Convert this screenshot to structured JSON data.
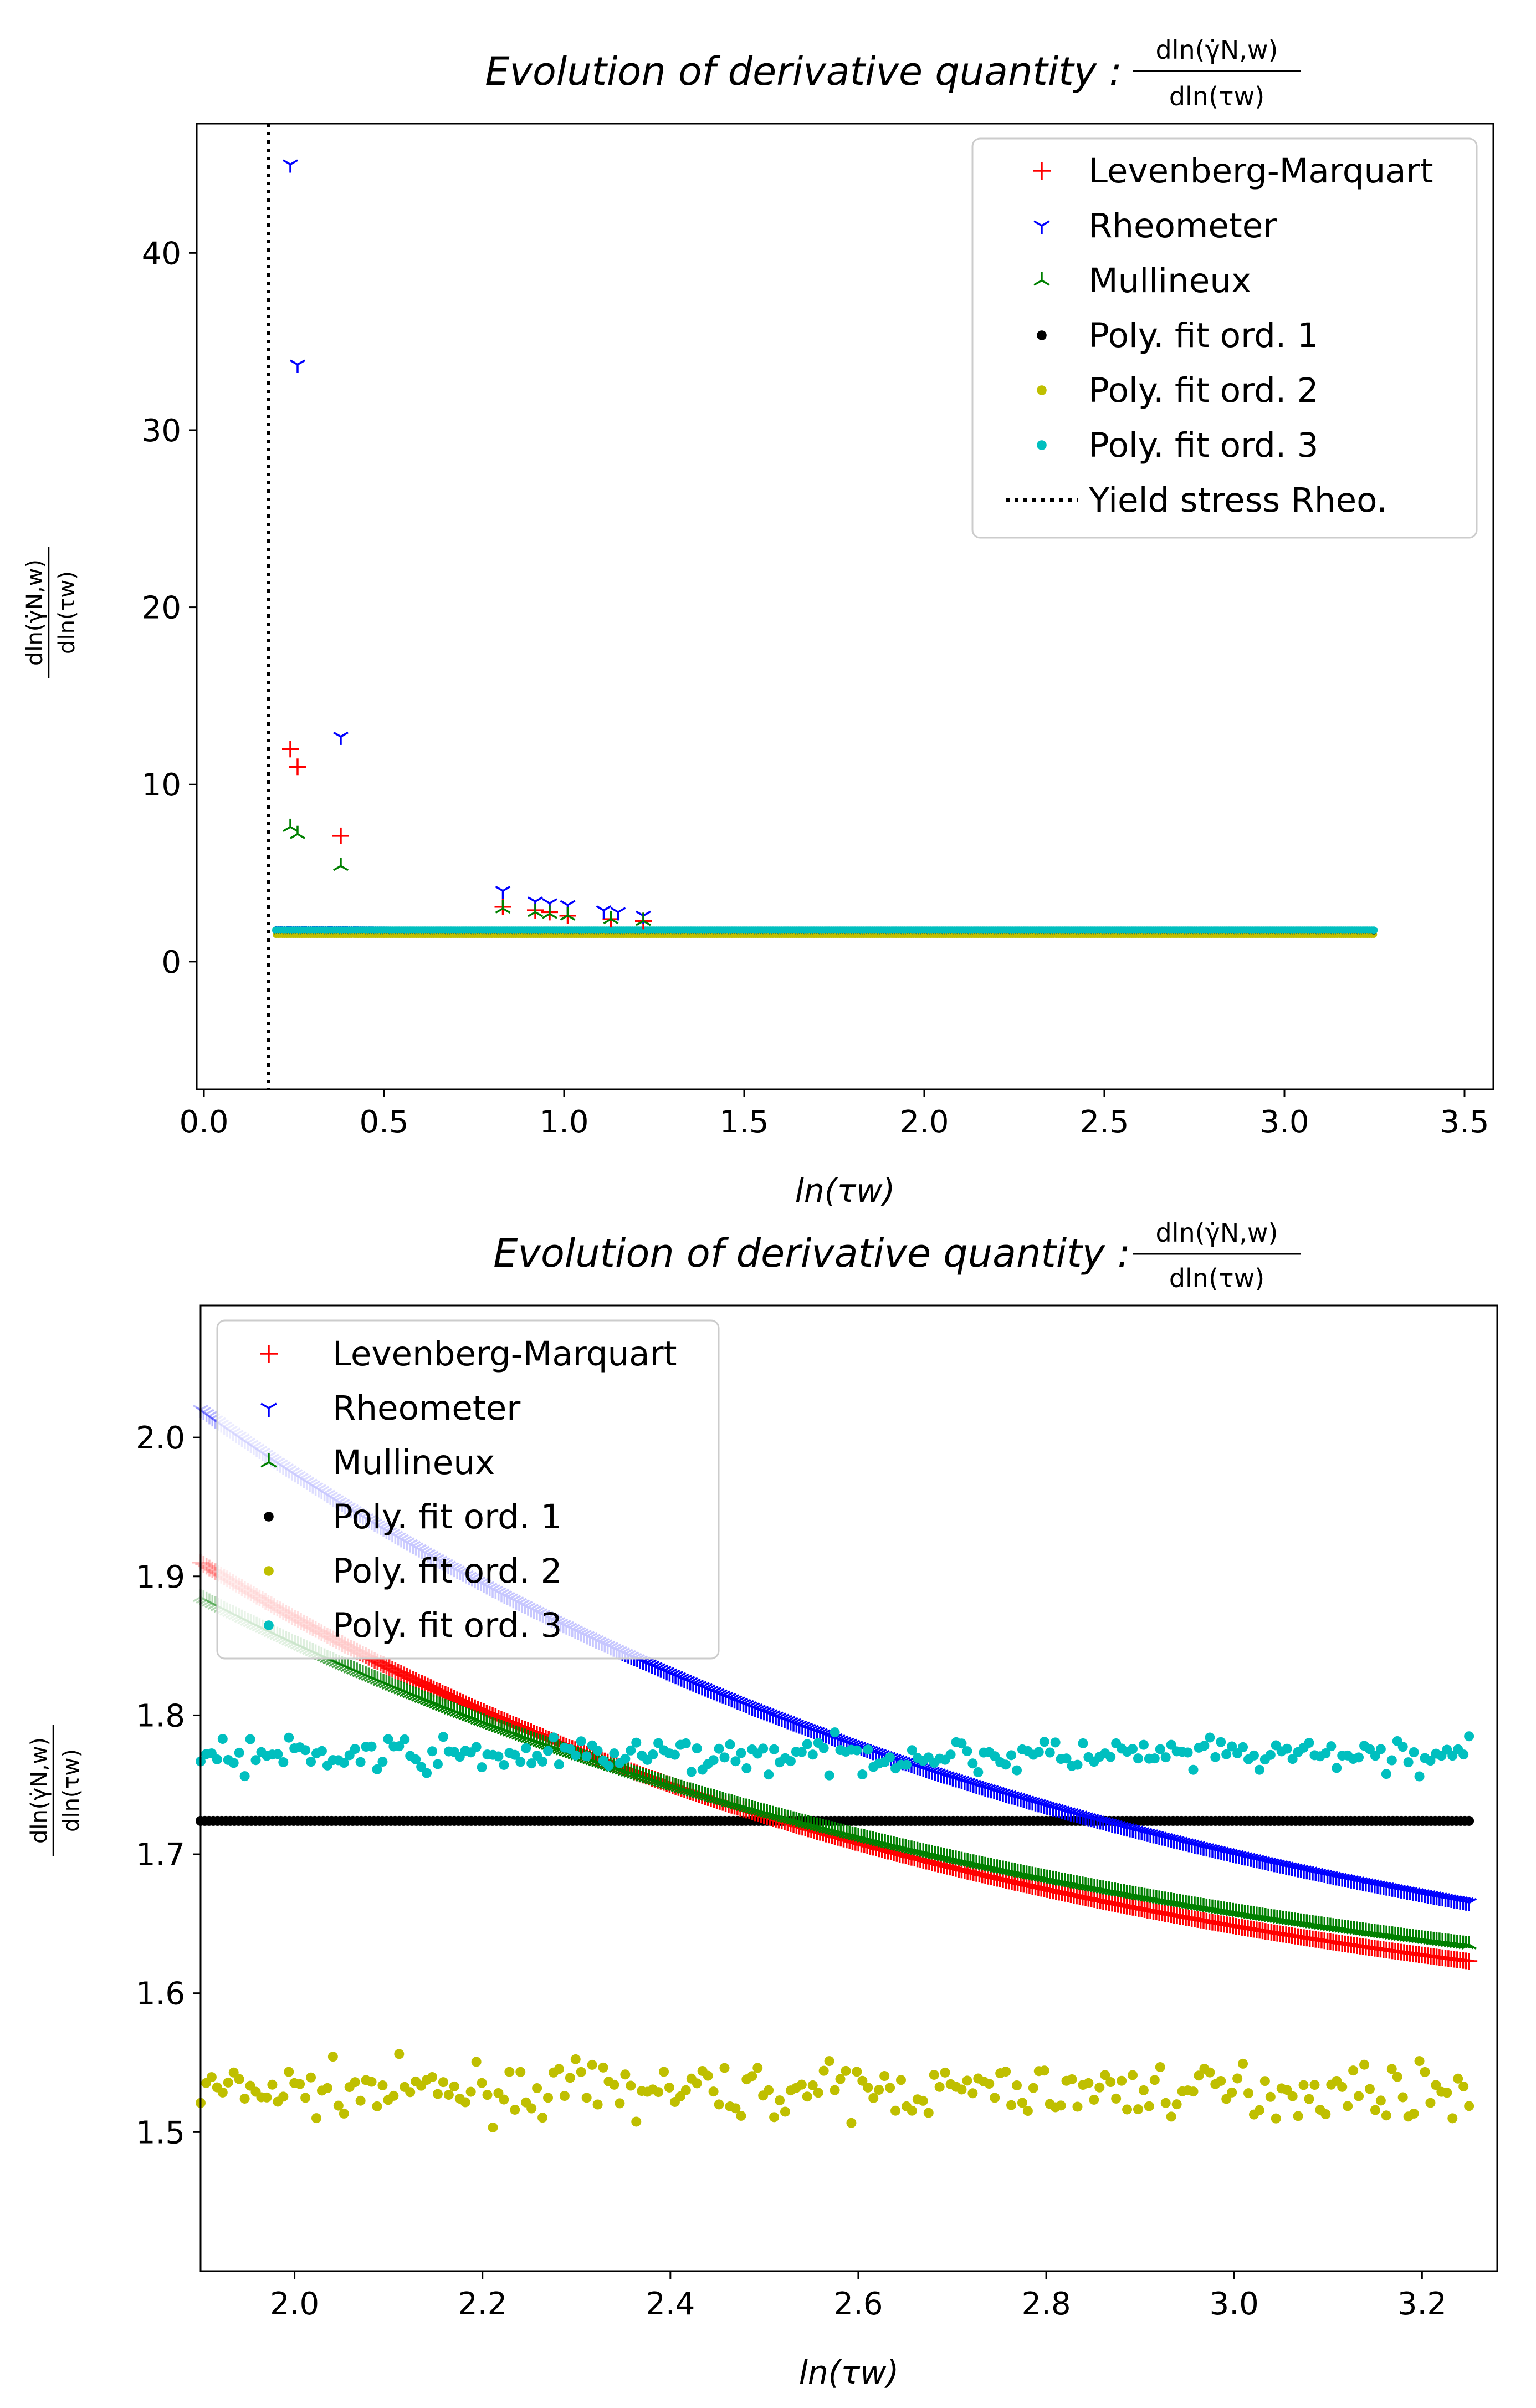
{
  "chart_data": [
    {
      "type": "scatter",
      "title": "Evolution of derivative quantity :",
      "title_fraction": {
        "numerator": "dln(γ̇N,w)",
        "denominator": "dln(τw)"
      },
      "xlabel": "ln(τw)",
      "ylabel_fraction": {
        "numerator": "dln(γ̇N,w)",
        "denominator": "dln(τw)"
      },
      "xlim": [
        -0.02,
        3.58
      ],
      "ylim": [
        -7.2,
        47.3
      ],
      "xticks": [
        0.0,
        0.5,
        1.0,
        1.5,
        2.0,
        2.5,
        3.0,
        3.5
      ],
      "xtick_labels": [
        "0.0",
        "0.5",
        "1.0",
        "1.5",
        "2.0",
        "2.5",
        "3.0",
        "3.5"
      ],
      "yticks": [
        0,
        10,
        20,
        30,
        40
      ],
      "ytick_labels": [
        "0",
        "10",
        "20",
        "30",
        "40"
      ],
      "legend_position": "upper right",
      "vline": {
        "x": 0.18,
        "label": "Yield stress Rheo.",
        "style": "dotted",
        "color": "#000000"
      },
      "series": [
        {
          "name": "Levenberg-Marquart",
          "marker": "+",
          "color": "#ff0000",
          "points": [
            [
              0.24,
              12.0
            ],
            [
              0.26,
              11.0
            ],
            [
              0.38,
              7.1
            ],
            [
              0.83,
              3.1
            ],
            [
              0.92,
              2.9
            ],
            [
              0.96,
              2.8
            ],
            [
              1.01,
              2.6
            ],
            [
              1.13,
              2.4
            ],
            [
              1.22,
              2.3
            ]
          ]
        },
        {
          "name": "Rheometer",
          "marker": "1",
          "color": "#0000ff",
          "points": [
            [
              0.24,
              45.0
            ],
            [
              0.26,
              33.7
            ],
            [
              0.38,
              12.7
            ],
            [
              0.83,
              4.0
            ],
            [
              0.92,
              3.4
            ],
            [
              0.96,
              3.3
            ],
            [
              1.01,
              3.2
            ],
            [
              1.11,
              2.9
            ],
            [
              1.15,
              2.8
            ],
            [
              1.22,
              2.6
            ]
          ]
        },
        {
          "name": "Mullineux",
          "marker": "2",
          "color": "#008000",
          "points": [
            [
              0.24,
              7.6
            ],
            [
              0.26,
              7.2
            ],
            [
              0.38,
              5.4
            ],
            [
              0.83,
              3.0
            ],
            [
              0.92,
              2.8
            ],
            [
              0.96,
              2.7
            ],
            [
              1.01,
              2.6
            ],
            [
              1.13,
              2.4
            ],
            [
              1.22,
              2.3
            ]
          ]
        },
        {
          "name": "Poly. fit ord. 1",
          "marker": "o",
          "color": "#000000",
          "points": []
        },
        {
          "name": "Poly. fit ord. 2",
          "marker": "o",
          "color": "#bfbf00",
          "points": []
        },
        {
          "name": "Poly. fit ord. 3",
          "marker": "o",
          "color": "#00bfbf",
          "points": []
        }
      ],
      "dense_band": {
        "x_range": [
          0.2,
          3.25
        ],
        "y_range": [
          1.5,
          2.05
        ]
      }
    },
    {
      "type": "scatter",
      "title": "Evolution of derivative quantity :",
      "title_fraction": {
        "numerator": "dln(γ̇N,w)",
        "denominator": "dln(τw)"
      },
      "xlabel": "ln(τw)",
      "ylabel_fraction": {
        "numerator": "dln(γ̇N,w)",
        "denominator": "dln(τw)"
      },
      "xlim": [
        1.9,
        3.28
      ],
      "ylim": [
        1.4,
        2.095
      ],
      "xticks": [
        2.0,
        2.2,
        2.4,
        2.6,
        2.8,
        3.0,
        3.2
      ],
      "xtick_labels": [
        "2.0",
        "2.2",
        "2.4",
        "2.6",
        "2.8",
        "3.0",
        "3.2"
      ],
      "yticks": [
        1.5,
        1.6,
        1.7,
        1.8,
        1.9,
        2.0
      ],
      "ytick_labels": [
        "1.5",
        "1.6",
        "1.7",
        "1.8",
        "1.9",
        "2.0"
      ],
      "legend_position": "upper left",
      "x_range": [
        1.9,
        3.25
      ],
      "series": [
        {
          "name": "Levenberg-Marquart",
          "marker": "+",
          "color": "#ff0000",
          "curve": "exp_decay",
          "anchors": [
            [
              1.9,
              1.91
            ],
            [
              2.4,
              1.75
            ],
            [
              3.25,
              1.623
            ]
          ]
        },
        {
          "name": "Rheometer",
          "marker": "1",
          "color": "#0000ff",
          "curve": "exp_decay",
          "anchors": [
            [
              1.9,
              2.02
            ],
            [
              2.4,
              1.83
            ],
            [
              3.25,
              1.665
            ]
          ]
        },
        {
          "name": "Mullineux",
          "marker": "2",
          "color": "#008000",
          "curve": "exp_decay",
          "anchors": [
            [
              1.9,
              1.885
            ],
            [
              2.4,
              1.75
            ],
            [
              3.25,
              1.635
            ]
          ]
        },
        {
          "name": "Poly. fit ord. 1",
          "marker": "o",
          "color": "#000000",
          "curve": "constant",
          "mean": 1.724,
          "noise": 0
        },
        {
          "name": "Poly. fit ord. 2",
          "marker": "o",
          "color": "#bfbf00",
          "curve": "constant",
          "mean": 1.53,
          "noise": 0.009
        },
        {
          "name": "Poly. fit ord. 3",
          "marker": "o",
          "color": "#00bfbf",
          "curve": "constant",
          "mean": 1.771,
          "noise": 0.006
        }
      ]
    }
  ]
}
